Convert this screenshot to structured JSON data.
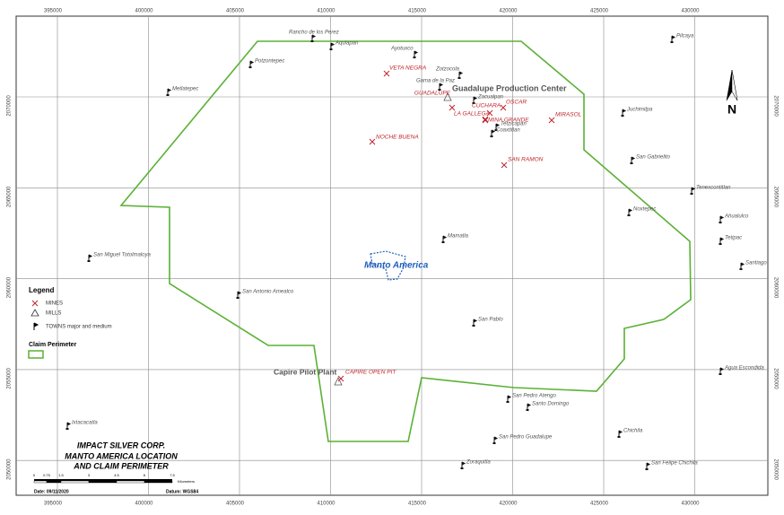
{
  "map": {
    "eastings": [
      395000,
      400000,
      405000,
      410000,
      415000,
      420000,
      425000,
      430000
    ],
    "northings": [
      2070000,
      2065000,
      2060000,
      2055000,
      2050000
    ],
    "north_label": "N",
    "towns": [
      "Pilcaya",
      "Rancho de los Perez",
      "Aquiapan",
      "Ayotuxco",
      "Potzontepec",
      "Zotzocola",
      "Gama de la Paz",
      "Metlatepec",
      "Zacualpan",
      "Juchimilpa",
      "Tetzicapan",
      "Coaxtitlan",
      "San Gabrielito",
      "Tenexcontitlan",
      "Noxtepec",
      "Ahualulco",
      "Mamatla",
      "Tetipac",
      "San Miguel Totolmaloya",
      "Santiago",
      "San Antonio Amealco",
      "San Pablo",
      "Agua Escondida",
      "San Pedro Atengo",
      "Santo Domingo",
      "Ixtacacatla",
      "Chichila",
      "San Pedro Guadalupe",
      "Zoraquitla",
      "San Felipe Chichila"
    ],
    "mines": [
      "VETA NEGRA",
      "GUADALUPE",
      "OSCAR",
      "CUCHARA",
      "LA GALLEGA",
      "MINA GRANDE",
      "MIRASOL",
      "NOCHE BUENA",
      "SAN RAMON",
      "CAPIRE OPEN PIT"
    ],
    "areas": {
      "production_center": "Guadalupe Production Center",
      "project": "Manto America",
      "pilot_plant": "Capire Pilot Plant"
    },
    "legend": {
      "title": "Legend",
      "items": [
        "MINES",
        "MILLS",
        "TOWNS major and medium"
      ],
      "perimeter_title": "Claim Perimeter"
    },
    "title_block": {
      "lines": [
        "IMPACT SILVER CORP.",
        "MANTO AMERICA LOCATION",
        "AND CLAIM PERIMETER"
      ],
      "scale_ticks": [
        "0",
        "0.75",
        "1.5",
        "3",
        "4.5",
        "6",
        "7.5"
      ],
      "scale_unit": "Kilometers",
      "date": "Date: 09/11/2020",
      "datum": "Datum: WGS84"
    }
  }
}
